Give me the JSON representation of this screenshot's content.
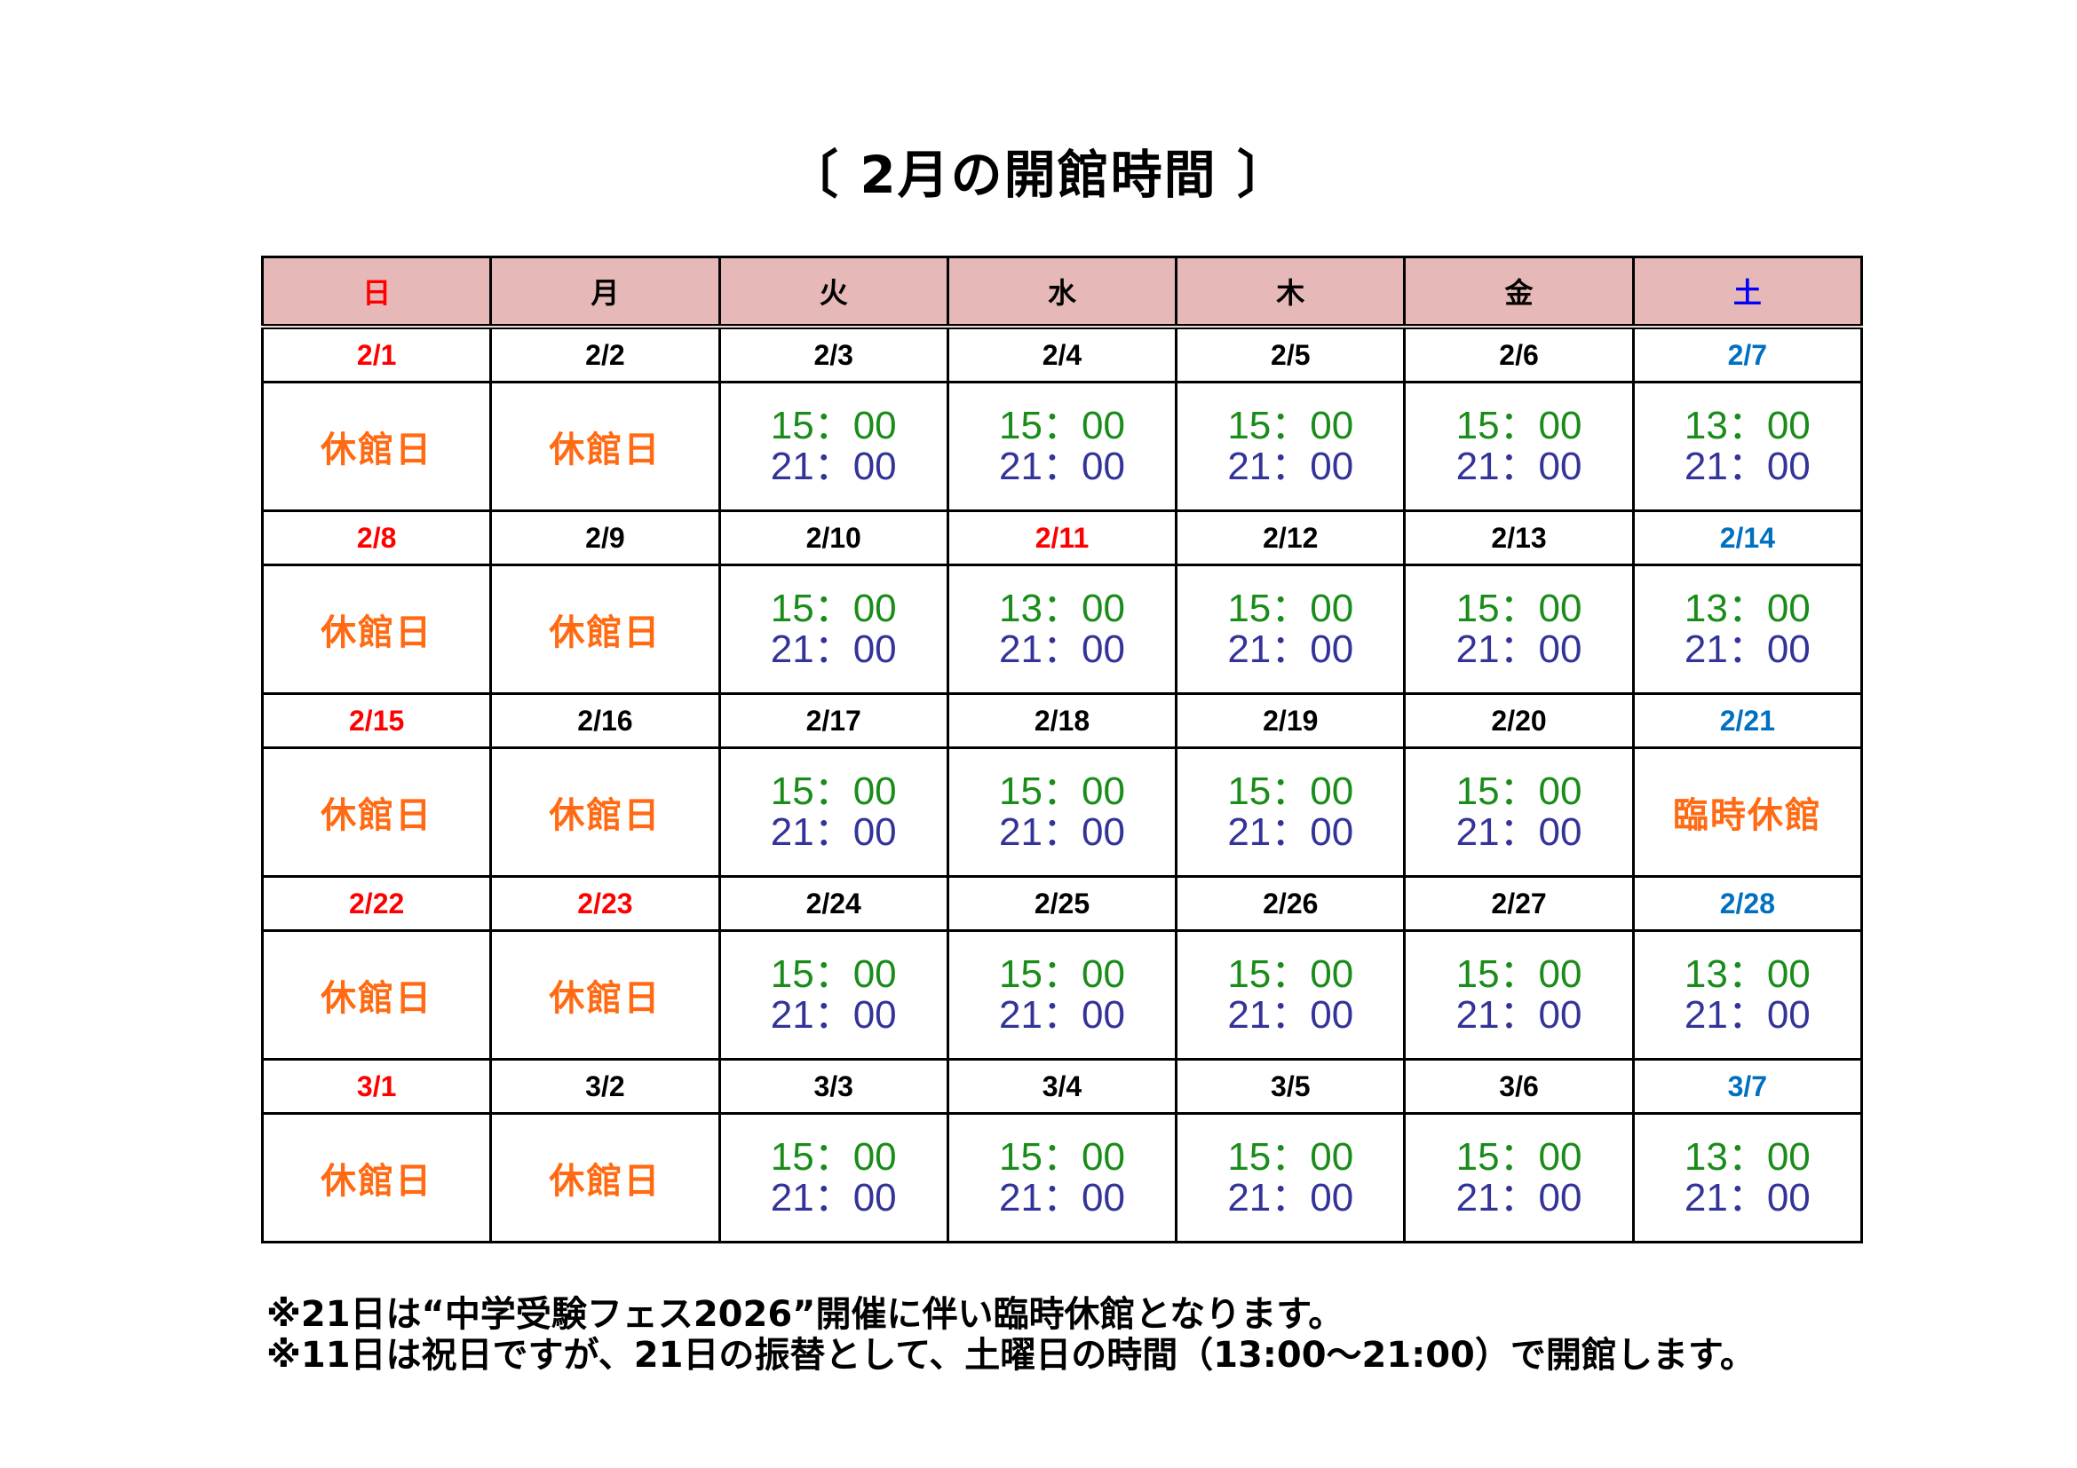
{
  "title": "〔 2月の開館時間 〕",
  "colors": {
    "header_bg": "#e6b8b7",
    "sunday_holiday": "#ff0000",
    "saturday": "#0070c0",
    "closed": "#ff6a13",
    "open_time": "#1a8c1a",
    "close_time": "#333399"
  },
  "weekdays": [
    {
      "label": "日",
      "color": "red"
    },
    {
      "label": "月",
      "color": "black"
    },
    {
      "label": "火",
      "color": "black"
    },
    {
      "label": "水",
      "color": "black"
    },
    {
      "label": "木",
      "color": "black"
    },
    {
      "label": "金",
      "color": "black"
    },
    {
      "label": "土",
      "color": "hblue"
    }
  ],
  "weeks": [
    [
      {
        "date": "2/1",
        "color": "red",
        "closed": "休館日"
      },
      {
        "date": "2/2",
        "color": "black",
        "closed": "休館日"
      },
      {
        "date": "2/3",
        "color": "black",
        "open": "15：00",
        "close": "21：00"
      },
      {
        "date": "2/4",
        "color": "black",
        "open": "15：00",
        "close": "21：00"
      },
      {
        "date": "2/5",
        "color": "black",
        "open": "15：00",
        "close": "21：00"
      },
      {
        "date": "2/6",
        "color": "black",
        "open": "15：00",
        "close": "21：00"
      },
      {
        "date": "2/7",
        "color": "blue",
        "open": "13：00",
        "close": "21：00"
      }
    ],
    [
      {
        "date": "2/8",
        "color": "red",
        "closed": "休館日"
      },
      {
        "date": "2/9",
        "color": "black",
        "closed": "休館日"
      },
      {
        "date": "2/10",
        "color": "black",
        "open": "15：00",
        "close": "21：00"
      },
      {
        "date": "2/11",
        "color": "red",
        "open": "13：00",
        "close": "21：00"
      },
      {
        "date": "2/12",
        "color": "black",
        "open": "15：00",
        "close": "21：00"
      },
      {
        "date": "2/13",
        "color": "black",
        "open": "15：00",
        "close": "21：00"
      },
      {
        "date": "2/14",
        "color": "blue",
        "open": "13：00",
        "close": "21：00"
      }
    ],
    [
      {
        "date": "2/15",
        "color": "red",
        "closed": "休館日"
      },
      {
        "date": "2/16",
        "color": "black",
        "closed": "休館日"
      },
      {
        "date": "2/17",
        "color": "black",
        "open": "15：00",
        "close": "21：00"
      },
      {
        "date": "2/18",
        "color": "black",
        "open": "15：00",
        "close": "21：00"
      },
      {
        "date": "2/19",
        "color": "black",
        "open": "15：00",
        "close": "21：00"
      },
      {
        "date": "2/20",
        "color": "black",
        "open": "15：00",
        "close": "21：00"
      },
      {
        "date": "2/21",
        "color": "blue",
        "closed": "臨時休館"
      }
    ],
    [
      {
        "date": "2/22",
        "color": "red",
        "closed": "休館日"
      },
      {
        "date": "2/23",
        "color": "red",
        "closed": "休館日"
      },
      {
        "date": "2/24",
        "color": "black",
        "open": "15：00",
        "close": "21：00"
      },
      {
        "date": "2/25",
        "color": "black",
        "open": "15：00",
        "close": "21：00"
      },
      {
        "date": "2/26",
        "color": "black",
        "open": "15：00",
        "close": "21：00"
      },
      {
        "date": "2/27",
        "color": "black",
        "open": "15：00",
        "close": "21：00"
      },
      {
        "date": "2/28",
        "color": "blue",
        "open": "13：00",
        "close": "21：00"
      }
    ],
    [
      {
        "date": "3/1",
        "color": "red",
        "closed": "休館日"
      },
      {
        "date": "3/2",
        "color": "black",
        "closed": "休館日"
      },
      {
        "date": "3/3",
        "color": "black",
        "open": "15：00",
        "close": "21：00"
      },
      {
        "date": "3/4",
        "color": "black",
        "open": "15：00",
        "close": "21：00"
      },
      {
        "date": "3/5",
        "color": "black",
        "open": "15：00",
        "close": "21：00"
      },
      {
        "date": "3/6",
        "color": "black",
        "open": "15：00",
        "close": "21：00"
      },
      {
        "date": "3/7",
        "color": "blue",
        "open": "13：00",
        "close": "21：00"
      }
    ]
  ],
  "notes": [
    "※21日は“中学受験フェス2026”開催に伴い臨時休館となります。",
    "※11日は祝日ですが、21日の振替として、土曜日の時間（13:00～21:00）で開館します。"
  ]
}
